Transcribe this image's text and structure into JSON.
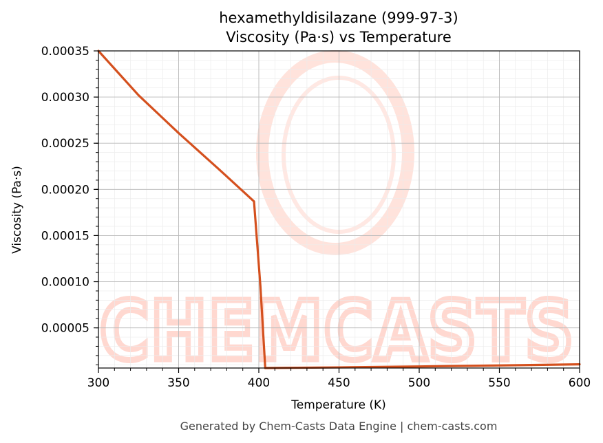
{
  "chart_data": {
    "type": "line",
    "title": "hexamethyldisilazane (999-97-3)",
    "subtitle": "Viscosity (Pa·s) vs Temperature",
    "xlabel": "Temperature (K)",
    "ylabel": "Viscosity (Pa·s)",
    "xlim": [
      300,
      600
    ],
    "ylim": [
      6.5e-06,
      0.00035
    ],
    "x_ticks": [
      300,
      350,
      400,
      450,
      500,
      550,
      600
    ],
    "x_tick_labels": [
      "300",
      "350",
      "400",
      "450",
      "500",
      "550",
      "600"
    ],
    "y_ticks": [
      5e-05,
      0.0001,
      0.00015,
      0.0002,
      0.00025,
      0.0003,
      0.00035
    ],
    "y_tick_labels": [
      "0.00005",
      "0.00010",
      "0.00015",
      "0.00020",
      "0.00025",
      "0.00030",
      "0.00035"
    ],
    "grid": true,
    "series": [
      {
        "color": "#d4501e",
        "x": [
          300,
          325,
          350,
          375,
          397,
          401,
          404,
          450,
          500,
          550,
          600
        ],
        "y": [
          0.00035,
          0.000302,
          0.000261,
          0.000222,
          0.000187,
          9.5e-05,
          6.5e-06,
          7.2e-06,
          8.2e-06,
          9.3e-06,
          1.05e-05
        ]
      }
    ]
  },
  "watermark": "CHEMCASTS",
  "footer": "Generated by Chem-Casts Data Engine | chem-casts.com"
}
